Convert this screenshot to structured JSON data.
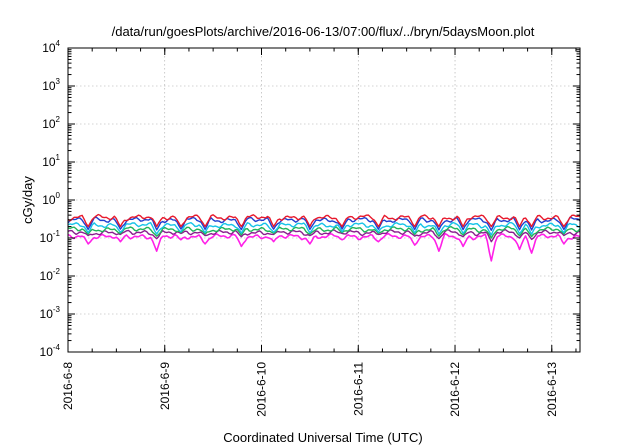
{
  "chart_data": {
    "type": "line",
    "title": "/data/run/goesPlots/archive/2016-06-13/07:00/flux/../bryn/5daysMoon.plot",
    "xlabel": "Coordinated Universal Time (UTC)",
    "ylabel": "cGy/day",
    "yscale": "log",
    "ylim": [
      0.0001,
      10000
    ],
    "y_ticks": [
      {
        "base": "10",
        "exp": "-4",
        "value": 0.0001
      },
      {
        "base": "10",
        "exp": "-3",
        "value": 0.001
      },
      {
        "base": "10",
        "exp": "-2",
        "value": 0.01
      },
      {
        "base": "10",
        "exp": "-1",
        "value": 0.1
      },
      {
        "base": "10",
        "exp": "0",
        "value": 1
      },
      {
        "base": "10",
        "exp": "1",
        "value": 10
      },
      {
        "base": "10",
        "exp": "2",
        "value": 100
      },
      {
        "base": "10",
        "exp": "3",
        "value": 1000
      },
      {
        "base": "10",
        "exp": "4",
        "value": 10000
      }
    ],
    "xlim": [
      "2016-06-08 00:00",
      "2016-06-13 07:00"
    ],
    "x_ticks": [
      {
        "label": "2016-6-8",
        "value": "2016-06-08 00:00"
      },
      {
        "label": "2016-6-9",
        "value": "2016-06-09 00:00"
      },
      {
        "label": "2016-6-10",
        "value": "2016-06-10 00:00"
      },
      {
        "label": "2016-6-11",
        "value": "2016-06-11 00:00"
      },
      {
        "label": "2016-6-12",
        "value": "2016-06-12 00:00"
      },
      {
        "label": "2016-6-13",
        "value": "2016-06-13 00:00"
      }
    ],
    "grid": true,
    "legend": "none",
    "series": [
      {
        "color": "#e8192c",
        "typical": 0.35,
        "dip_low": 0.2
      },
      {
        "color": "#1f3fd0",
        "typical": 0.3,
        "dip_low": 0.16
      },
      {
        "color": "#16c4e8",
        "typical": 0.22,
        "dip_low": 0.12
      },
      {
        "color": "#22b45a",
        "typical": 0.17,
        "dip_low": 0.1
      },
      {
        "color": "#8a1d8e",
        "typical": 0.14,
        "dip_low": 0.08
      },
      {
        "color": "#ff20e8",
        "typical": 0.11,
        "dip_low": 0.025
      }
    ],
    "dips": [
      {
        "time": "2016-06-08 05:00",
        "magenta_min": 0.07
      },
      {
        "time": "2016-06-08 13:00",
        "magenta_min": 0.08
      },
      {
        "time": "2016-06-08 22:00",
        "magenta_min": 0.045
      },
      {
        "time": "2016-06-09 04:00",
        "magenta_min": 0.09
      },
      {
        "time": "2016-06-09 10:00",
        "magenta_min": 0.07
      },
      {
        "time": "2016-06-09 19:00",
        "magenta_min": 0.06
      },
      {
        "time": "2016-06-10 03:00",
        "magenta_min": 0.08
      },
      {
        "time": "2016-06-10 12:00",
        "magenta_min": 0.07
      },
      {
        "time": "2016-06-10 20:00",
        "magenta_min": 0.09
      },
      {
        "time": "2016-06-11 05:00",
        "magenta_min": 0.08
      },
      {
        "time": "2016-06-11 14:00",
        "magenta_min": 0.065
      },
      {
        "time": "2016-06-11 20:00",
        "magenta_min": 0.045
      },
      {
        "time": "2016-06-12 02:00",
        "magenta_min": 0.06
      },
      {
        "time": "2016-06-12 09:00",
        "magenta_min": 0.025
      },
      {
        "time": "2016-06-12 16:00",
        "magenta_min": 0.05
      },
      {
        "time": "2016-06-12 19:00",
        "magenta_min": 0.04
      },
      {
        "time": "2016-06-13 03:00",
        "magenta_min": 0.07
      }
    ]
  }
}
